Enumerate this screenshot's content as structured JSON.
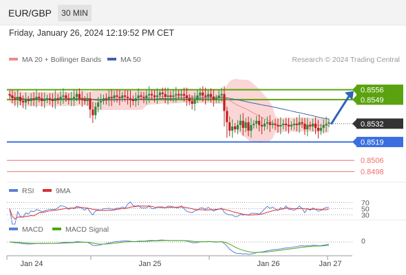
{
  "header": {
    "pair": "EUR/GBP",
    "timeframe": "30 MIN"
  },
  "date_line": "Friday, January 26, 2024 12:19:52 PM CET",
  "copyright": "Research © 2024 Trading Central",
  "colors": {
    "candle_up": "#2b8a3e",
    "candle_down": "#c41e1e",
    "resistance": "#5aa20f",
    "pivot": "#3b6fe0",
    "support": "#ef6f6f",
    "bollinger_fill": "#fbd6d6",
    "ma20": "#f08c8c",
    "ma50": "#3f62a8",
    "rsi": "#5b7fd6",
    "nine_ma": "#d93030",
    "macd": "#5b7fd6",
    "macd_signal": "#4ca616",
    "arrow": "#2f62b8",
    "current_price_bg": "#333333"
  },
  "chart_data": [
    {
      "type": "candlestick",
      "legend": [
        {
          "name": "MA 20 + Bollinger Bands",
          "color": "#f08c8c"
        },
        {
          "name": "MA 50",
          "color": "#3f62a8"
        }
      ],
      "ylim": [
        0.8492,
        0.8566
      ],
      "current_price": 0.8532,
      "levels": [
        {
          "value": 0.8556,
          "label": "0.8556",
          "kind": "resistance"
        },
        {
          "value": 0.8549,
          "label": "0.8549",
          "kind": "resistance"
        },
        {
          "value": 0.8519,
          "label": "0.8519",
          "kind": "pivot"
        },
        {
          "value": 0.8506,
          "label": "0.8506",
          "kind": "support"
        },
        {
          "value": 0.8498,
          "label": "0.8498",
          "kind": "support"
        }
      ],
      "arrow": {
        "from_price": 0.8532,
        "to_price": 0.8556,
        "direction": "up"
      },
      "x_ticks": [
        "Jan 24",
        "Jan 25",
        "Jan 26",
        "Jan 27"
      ],
      "closes": [
        0.8552,
        0.855,
        0.8549,
        0.8551,
        0.8548,
        0.8547,
        0.8549,
        0.8548,
        0.855,
        0.8549,
        0.8551,
        0.855,
        0.8548,
        0.8549,
        0.855,
        0.8549,
        0.8548,
        0.855,
        0.8549,
        0.8551,
        0.8552,
        0.855,
        0.8549,
        0.855,
        0.8551,
        0.8553,
        0.855,
        0.8549,
        0.8548,
        0.855,
        0.8542,
        0.8538,
        0.8544,
        0.8547,
        0.8548,
        0.855,
        0.8549,
        0.8551,
        0.855,
        0.8552,
        0.8551,
        0.855,
        0.8552,
        0.8551,
        0.855,
        0.8549,
        0.8548,
        0.855,
        0.8552,
        0.8551,
        0.855,
        0.8552,
        0.8553,
        0.8552,
        0.8551,
        0.8552,
        0.8554,
        0.8553,
        0.8551,
        0.8552,
        0.8551,
        0.8552,
        0.8553,
        0.8552,
        0.8553,
        0.8552,
        0.855,
        0.8548,
        0.8546,
        0.8549,
        0.8552,
        0.8554,
        0.8552,
        0.8551,
        0.8553,
        0.8551,
        0.8549,
        0.855,
        0.8552,
        0.8553,
        0.8541,
        0.8533,
        0.8527,
        0.853,
        0.8528,
        0.8531,
        0.8534,
        0.8529,
        0.8533,
        0.8527,
        0.8531,
        0.8532,
        0.8534,
        0.8531,
        0.853,
        0.8532,
        0.8533,
        0.8531,
        0.8532,
        0.8531,
        0.853,
        0.8531,
        0.8532,
        0.8531,
        0.853,
        0.8531,
        0.8532,
        0.8531,
        0.8533,
        0.8532,
        0.8528,
        0.8531,
        0.853,
        0.8532,
        0.8529,
        0.8527,
        0.8529,
        0.8531,
        0.8532,
        0.8533
      ]
    },
    {
      "type": "line",
      "series": [
        {
          "name": "RSI",
          "color": "#5b7fd6"
        },
        {
          "name": "9MA",
          "color": "#d93030"
        }
      ],
      "ylim": [
        20,
        80
      ],
      "y_ticks": [
        "70",
        "50",
        "30"
      ]
    },
    {
      "type": "line",
      "series": [
        {
          "name": "MACD",
          "color": "#5b7fd6"
        },
        {
          "name": "MACD Signal",
          "color": "#4ca616"
        }
      ],
      "y_ticks": [
        "0"
      ]
    }
  ]
}
